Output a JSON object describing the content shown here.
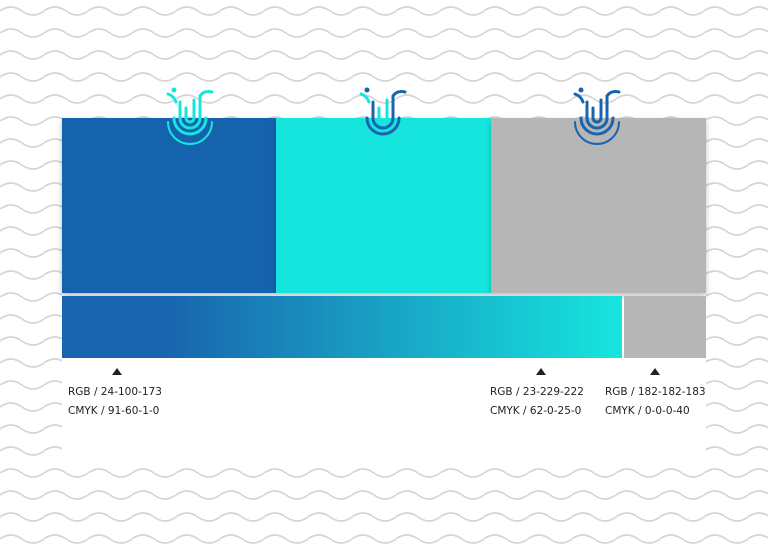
{
  "palette": {
    "swatches": [
      {
        "color": "#1864ad",
        "rgb": "RGB / 24-100-173",
        "cmyk": "CMYK / 91-60-1-0"
      },
      {
        "color": "#17e5de",
        "rgb": "RGB / 23-229-222",
        "cmyk": "CMYK / 62-0-25-0"
      },
      {
        "color": "#b6b6b7",
        "rgb": "RGB / 182-182-183",
        "cmyk": "CMYK / 0-0-0-40"
      }
    ]
  }
}
